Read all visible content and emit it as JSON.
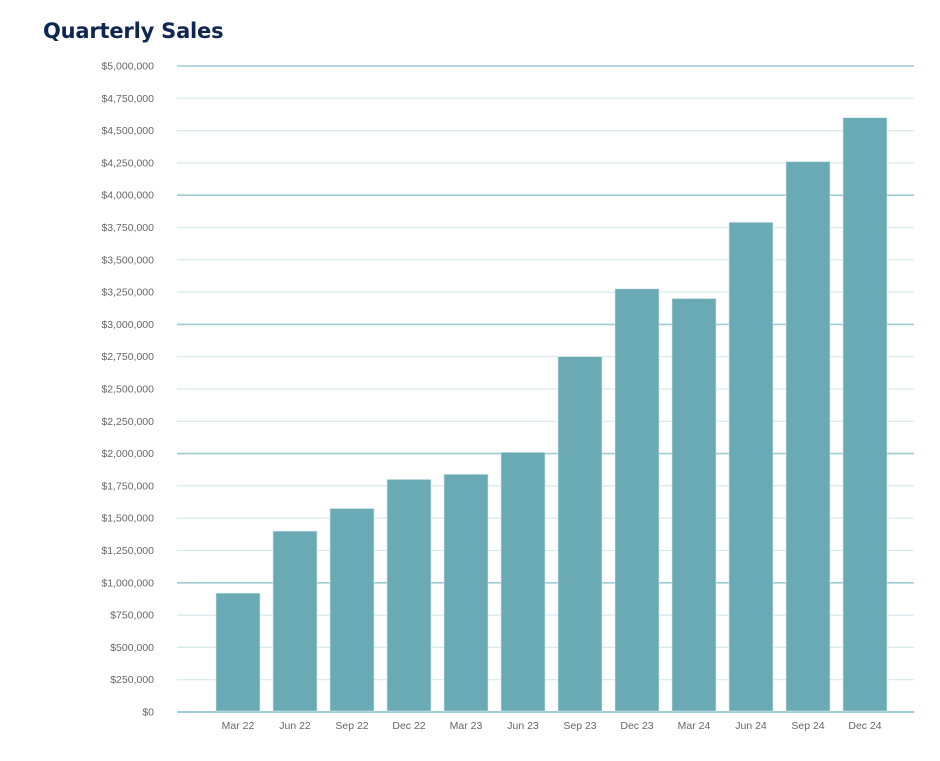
{
  "chart_data": {
    "type": "bar",
    "title": "Quarterly Sales",
    "xlabel": "",
    "ylabel": "",
    "categories": [
      "Mar 22",
      "Jun 22",
      "Sep 22",
      "Dec 22",
      "Mar 23",
      "Jun 23",
      "Sep 23",
      "Dec 23",
      "Mar 24",
      "Jun 24",
      "Sep 24",
      "Dec 24"
    ],
    "values": [
      920000,
      1400000,
      1575000,
      1800000,
      1840000,
      2010000,
      2750000,
      3275000,
      3200000,
      3790000,
      4260000,
      4600000
    ],
    "ylim": [
      0,
      5000000
    ],
    "yticks": [
      0,
      250000,
      500000,
      750000,
      1000000,
      1250000,
      1500000,
      1750000,
      2000000,
      2250000,
      2500000,
      2750000,
      3000000,
      3250000,
      3500000,
      3750000,
      4000000,
      4250000,
      4500000,
      4750000,
      5000000
    ],
    "ytick_labels": [
      "$0",
      "$250,000",
      "$500,000",
      "$750,000",
      "$1,000,000",
      "$1,250,000",
      "$1,500,000",
      "$1,750,000",
      "$2,000,000",
      "$2,250,000",
      "$2,500,000",
      "$2,750,000",
      "$3,000,000",
      "$3,250,000",
      "$3,500,000",
      "$3,750,000",
      "$4,000,000",
      "$4,250,000",
      "$4,500,000",
      "$4,750,000",
      "$5,000,000"
    ],
    "grid": true,
    "legend": "none",
    "colors": {
      "bar": "#6aaab4",
      "grid_major": "#9fcbd3",
      "grid_minor": "#d6e9ed",
      "axis": "#7fb8c2",
      "title": "#0f2552",
      "tick_text": "#666666"
    }
  }
}
